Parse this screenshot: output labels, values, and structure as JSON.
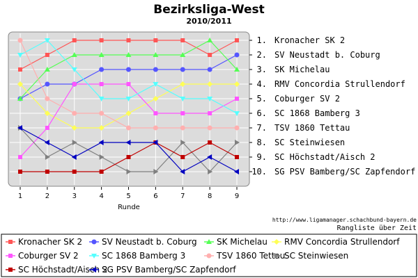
{
  "title": "Bezirksliga-West",
  "subtitle": "2010/2011",
  "source_url": "http://www.ligamanager.schachbund-bayern.de",
  "caption": "Rangliste über Zeit",
  "chart_data": {
    "type": "line",
    "xlabel": "Runde",
    "ylabel": "",
    "x": [
      1,
      2,
      3,
      4,
      5,
      6,
      7,
      8,
      9
    ],
    "ylim": [
      1,
      10
    ],
    "y_inverted": true,
    "grid": true,
    "legend_position": "bottom",
    "rank_labels": [
      "1. Kronacher SK 2",
      "2. SV Neustadt b. Coburg",
      "3. SK Michelau",
      "4. RMV Concordia Strullendorf",
      "5. Coburger SV 2",
      "6. SC 1868 Bamberg 3",
      "7. TSV 1860 Tettau",
      "8. SC Steinwiesen",
      "9. SC Höchstadt/Aisch 2",
      "10. SG PSV Bamberg/SC Zapfendorf"
    ],
    "series": [
      {
        "name": "Kronacher SK 2",
        "color": "#ff5555",
        "marker": "square",
        "values": [
          3,
          2,
          1,
          1,
          1,
          1,
          1,
          2,
          1
        ]
      },
      {
        "name": "SV Neustadt b. Coburg",
        "color": "#5555ff",
        "marker": "circle",
        "values": [
          5,
          4,
          4,
          3,
          3,
          3,
          3,
          3,
          2
        ]
      },
      {
        "name": "SK Michelau",
        "color": "#55ff55",
        "marker": "triangle-up",
        "values": [
          5,
          3,
          2,
          2,
          2,
          2,
          2,
          1,
          3
        ]
      },
      {
        "name": "RMV Concordia Strullendorf",
        "color": "#ffff55",
        "marker": "diamond",
        "values": [
          4,
          6,
          7,
          7,
          6,
          5,
          4,
          4,
          4
        ]
      },
      {
        "name": "Coburger SV 2",
        "color": "#ff55ff",
        "marker": "square",
        "values": [
          9,
          7,
          4,
          4,
          4,
          6,
          6,
          6,
          5
        ]
      },
      {
        "name": "SC 1868 Bamberg 3",
        "color": "#55ffff",
        "marker": "triangle-down",
        "values": [
          2,
          1,
          3,
          5,
          5,
          4,
          5,
          5,
          6
        ]
      },
      {
        "name": "TSV 1860 Tettau",
        "color": "#ffafaf",
        "marker": "circle",
        "values": [
          1,
          5,
          6,
          6,
          7,
          7,
          7,
          7,
          7
        ]
      },
      {
        "name": "SC Steinwiesen",
        "color": "#808080",
        "marker": "triangle-right",
        "values": [
          7,
          9,
          8,
          9,
          10,
          10,
          8,
          10,
          8
        ]
      },
      {
        "name": "SC Höchstadt/Aisch 2",
        "color": "#c00000",
        "marker": "square",
        "values": [
          10,
          10,
          10,
          10,
          9,
          8,
          9,
          8,
          9
        ]
      },
      {
        "name": "SG PSV Bamberg/SC Zapfendorf",
        "color": "#0000c0",
        "marker": "triangle-left",
        "values": [
          7,
          8,
          9,
          8,
          8,
          8,
          10,
          9,
          10
        ]
      }
    ]
  }
}
